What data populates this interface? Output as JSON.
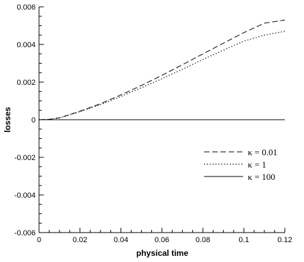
{
  "chart_data": {
    "type": "line",
    "title": "",
    "xlabel": "physical time",
    "ylabel": "losses",
    "xlim": [
      0,
      0.12
    ],
    "ylim": [
      -0.006,
      0.006
    ],
    "x_ticks": [
      "0",
      "0.02",
      "0.04",
      "0.06",
      "0.08",
      "0.1",
      "0.12"
    ],
    "y_ticks": [
      "-0.006",
      "-0.004",
      "-0.002",
      "0",
      "0.002",
      "0.004",
      "0.006"
    ],
    "x_tick_values": [
      0,
      0.02,
      0.04,
      0.06,
      0.08,
      0.1,
      0.12
    ],
    "y_tick_values": [
      -0.006,
      -0.004,
      -0.002,
      0,
      0.002,
      0.004,
      0.006
    ],
    "grid": false,
    "legend_position": "lower-right",
    "series": [
      {
        "name": "κ = 0.01",
        "line_style": "dashed",
        "color": "#000000",
        "x": [
          0,
          0.005,
          0.01,
          0.02,
          0.03,
          0.04,
          0.05,
          0.06,
          0.07,
          0.08,
          0.09,
          0.1,
          0.11,
          0.12
        ],
        "y": [
          0,
          2e-05,
          0.0001,
          0.00045,
          0.00085,
          0.00132,
          0.00182,
          0.00236,
          0.00292,
          0.0035,
          0.00407,
          0.00463,
          0.00513,
          0.0053
        ]
      },
      {
        "name": "κ = 1",
        "line_style": "dotted",
        "color": "#000000",
        "x": [
          0,
          0.005,
          0.01,
          0.02,
          0.03,
          0.04,
          0.05,
          0.06,
          0.07,
          0.08,
          0.09,
          0.1,
          0.11,
          0.12
        ],
        "y": [
          0,
          2e-05,
          0.0001,
          0.00043,
          0.0008,
          0.00124,
          0.0017,
          0.00218,
          0.00268,
          0.0032,
          0.0037,
          0.00418,
          0.0045,
          0.0047
        ]
      },
      {
        "name": "κ = 100",
        "line_style": "solid",
        "color": "#000000",
        "x": [
          0,
          0.12
        ],
        "y": [
          0,
          0
        ]
      }
    ]
  }
}
